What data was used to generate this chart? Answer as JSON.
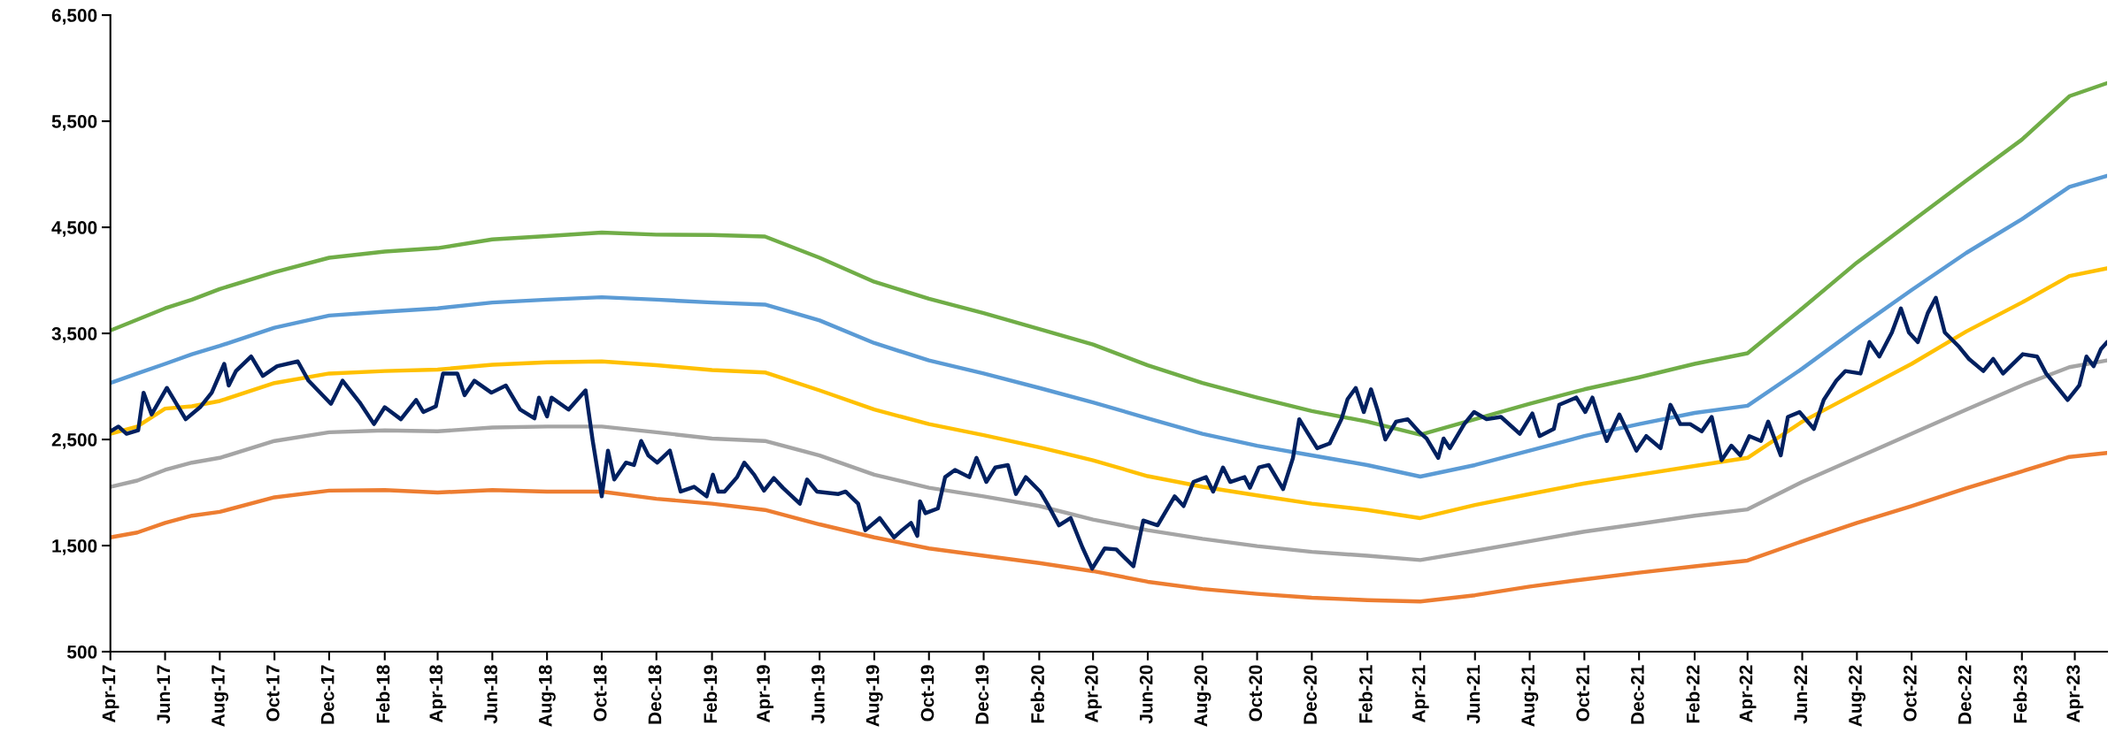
{
  "chart_data": {
    "type": "line",
    "ylim": [
      500,
      6500
    ],
    "yticks": [
      {
        "value": 500,
        "label": "500"
      },
      {
        "value": 1500,
        "label": "1,500"
      },
      {
        "value": 2500,
        "label": "2,500"
      },
      {
        "value": 3500,
        "label": "3,500"
      },
      {
        "value": 4500,
        "label": "4,500"
      },
      {
        "value": 5500,
        "label": "5,500"
      },
      {
        "value": 6500,
        "label": "6,500"
      }
    ],
    "xlim": [
      "2017-04-01",
      "2023-05-07"
    ],
    "xticks": [
      {
        "value": "2017-04-01",
        "label": "Apr-17"
      },
      {
        "value": "2017-06-01",
        "label": "Jun-17"
      },
      {
        "value": "2017-08-01",
        "label": "Aug-17"
      },
      {
        "value": "2017-10-01",
        "label": "Oct-17"
      },
      {
        "value": "2017-12-01",
        "label": "Dec-17"
      },
      {
        "value": "2018-02-01",
        "label": "Feb-18"
      },
      {
        "value": "2018-04-01",
        "label": "Apr-18"
      },
      {
        "value": "2018-06-01",
        "label": "Jun-18"
      },
      {
        "value": "2018-08-01",
        "label": "Aug-18"
      },
      {
        "value": "2018-10-01",
        "label": "Oct-18"
      },
      {
        "value": "2018-12-01",
        "label": "Dec-18"
      },
      {
        "value": "2019-02-01",
        "label": "Feb-19"
      },
      {
        "value": "2019-04-01",
        "label": "Apr-19"
      },
      {
        "value": "2019-06-01",
        "label": "Jun-19"
      },
      {
        "value": "2019-08-01",
        "label": "Aug-19"
      },
      {
        "value": "2019-10-01",
        "label": "Oct-19"
      },
      {
        "value": "2019-12-01",
        "label": "Dec-19"
      },
      {
        "value": "2020-02-01",
        "label": "Feb-20"
      },
      {
        "value": "2020-04-01",
        "label": "Apr-20"
      },
      {
        "value": "2020-06-01",
        "label": "Jun-20"
      },
      {
        "value": "2020-08-01",
        "label": "Aug-20"
      },
      {
        "value": "2020-10-01",
        "label": "Oct-20"
      },
      {
        "value": "2020-12-01",
        "label": "Dec-20"
      },
      {
        "value": "2021-02-01",
        "label": "Feb-21"
      },
      {
        "value": "2021-04-01",
        "label": "Apr-21"
      },
      {
        "value": "2021-06-01",
        "label": "Jun-21"
      },
      {
        "value": "2021-08-01",
        "label": "Aug-21"
      },
      {
        "value": "2021-10-01",
        "label": "Oct-21"
      },
      {
        "value": "2021-12-01",
        "label": "Dec-21"
      },
      {
        "value": "2022-02-01",
        "label": "Feb-22"
      },
      {
        "value": "2022-04-01",
        "label": "Apr-22"
      },
      {
        "value": "2022-06-01",
        "label": "Jun-22"
      },
      {
        "value": "2022-08-01",
        "label": "Aug-22"
      },
      {
        "value": "2022-10-01",
        "label": "Oct-22"
      },
      {
        "value": "2022-12-01",
        "label": "Dec-22"
      },
      {
        "value": "2023-02-01",
        "label": "Feb-23"
      },
      {
        "value": "2023-04-01",
        "label": "Apr-23"
      }
    ],
    "series": [
      {
        "color": "#70ad47",
        "x": [
          "2017-04-01",
          "2017-06-01",
          "2017-07-01",
          "2017-08-01",
          "2017-10-01",
          "2017-12-01",
          "2018-02-01",
          "2018-04-01",
          "2018-06-01",
          "2018-08-01",
          "2018-10-01",
          "2018-12-01",
          "2019-02-01",
          "2019-04-01",
          "2019-06-01",
          "2019-08-01",
          "2019-10-01",
          "2019-12-01",
          "2020-02-01",
          "2020-04-01",
          "2020-06-01",
          "2020-08-01",
          "2020-10-01",
          "2020-12-01",
          "2021-02-01",
          "2021-04-01",
          "2021-06-01",
          "2021-08-01",
          "2021-10-01",
          "2021-12-01",
          "2022-02-01",
          "2022-04-01",
          "2022-06-01",
          "2022-08-01",
          "2022-10-01",
          "2022-12-01",
          "2023-02-01",
          "2023-03-26",
          "2023-05-07"
        ],
        "values": [
          3527,
          3736,
          3818,
          3918,
          4077,
          4213,
          4272,
          4304,
          4386,
          4418,
          4450,
          4431,
          4427,
          4413,
          4213,
          3986,
          3827,
          3691,
          3541,
          3395,
          3200,
          3032,
          2895,
          2768,
          2668,
          2545,
          2691,
          2836,
          2973,
          3086,
          3213,
          3313,
          3736,
          4168,
          4554,
          4941,
          5327,
          5736,
          5859
        ]
      },
      {
        "color": "#5b9bd5",
        "x": [
          "2017-04-01",
          "2017-05-01",
          "2017-06-01",
          "2017-07-01",
          "2017-08-01",
          "2017-10-01",
          "2017-12-01",
          "2018-02-01",
          "2018-04-01",
          "2018-06-01",
          "2018-08-01",
          "2018-10-01",
          "2018-12-01",
          "2019-02-01",
          "2019-04-01",
          "2019-06-01",
          "2019-08-01",
          "2019-10-01",
          "2019-12-01",
          "2020-02-01",
          "2020-04-01",
          "2020-06-01",
          "2020-08-01",
          "2020-10-01",
          "2020-12-01",
          "2021-02-01",
          "2021-04-01",
          "2021-06-01",
          "2021-08-01",
          "2021-10-01",
          "2021-12-01",
          "2022-02-01",
          "2022-04-01",
          "2022-06-01",
          "2022-08-01",
          "2022-10-01",
          "2022-12-01",
          "2023-02-01",
          "2023-03-26",
          "2023-05-07"
        ],
        "values": [
          3032,
          3122,
          3213,
          3304,
          3382,
          3554,
          3668,
          3704,
          3736,
          3791,
          3818,
          3841,
          3818,
          3791,
          3772,
          3622,
          3409,
          3245,
          3122,
          2986,
          2850,
          2700,
          2554,
          2441,
          2350,
          2259,
          2150,
          2259,
          2395,
          2532,
          2645,
          2750,
          2818,
          3168,
          3545,
          3909,
          4259,
          4577,
          4881,
          4986
        ]
      },
      {
        "color": "#ffc000",
        "x": [
          "2017-04-01",
          "2017-05-01",
          "2017-06-01",
          "2017-07-01",
          "2017-08-01",
          "2017-10-01",
          "2017-12-01",
          "2018-02-01",
          "2018-04-01",
          "2018-06-01",
          "2018-08-01",
          "2018-10-01",
          "2018-12-01",
          "2019-02-01",
          "2019-04-01",
          "2019-06-01",
          "2019-08-01",
          "2019-10-01",
          "2019-12-01",
          "2020-02-01",
          "2020-04-01",
          "2020-06-01",
          "2020-08-01",
          "2020-10-01",
          "2020-12-01",
          "2021-02-01",
          "2021-04-01",
          "2021-06-01",
          "2021-08-01",
          "2021-10-01",
          "2021-12-01",
          "2022-02-01",
          "2022-04-01",
          "2022-06-01",
          "2022-08-01",
          "2022-10-01",
          "2022-12-01",
          "2023-02-01",
          "2023-03-26",
          "2023-05-07"
        ],
        "values": [
          2554,
          2622,
          2791,
          2813,
          2863,
          3032,
          3122,
          3145,
          3159,
          3204,
          3227,
          3236,
          3200,
          3154,
          3132,
          2963,
          2782,
          2645,
          2541,
          2427,
          2304,
          2154,
          2054,
          1973,
          1895,
          1836,
          1759,
          1882,
          1986,
          2086,
          2168,
          2250,
          2327,
          2668,
          2941,
          3213,
          3518,
          3791,
          4041,
          4113
        ]
      },
      {
        "color": "#a5a5a5",
        "x": [
          "2017-04-01",
          "2017-05-01",
          "2017-06-01",
          "2017-07-01",
          "2017-08-01",
          "2017-10-01",
          "2017-12-01",
          "2018-02-01",
          "2018-04-01",
          "2018-06-01",
          "2018-08-01",
          "2018-10-01",
          "2018-12-01",
          "2019-02-01",
          "2019-04-01",
          "2019-06-01",
          "2019-08-01",
          "2019-10-01",
          "2019-12-01",
          "2020-02-01",
          "2020-04-01",
          "2020-06-01",
          "2020-08-01",
          "2020-10-01",
          "2020-12-01",
          "2021-02-01",
          "2021-04-01",
          "2021-06-01",
          "2021-08-01",
          "2021-10-01",
          "2021-12-01",
          "2022-02-01",
          "2022-04-01",
          "2022-06-01",
          "2022-08-01",
          "2022-10-01",
          "2022-12-01",
          "2023-02-01",
          "2023-03-26",
          "2023-05-07"
        ],
        "values": [
          2054,
          2113,
          2213,
          2282,
          2327,
          2486,
          2568,
          2586,
          2577,
          2613,
          2622,
          2622,
          2568,
          2509,
          2486,
          2350,
          2168,
          2045,
          1964,
          1873,
          1745,
          1645,
          1564,
          1495,
          1441,
          1404,
          1364,
          1450,
          1541,
          1632,
          1704,
          1782,
          1841,
          2100,
          2327,
          2554,
          2782,
          3009,
          3182,
          3245
        ]
      },
      {
        "color": "#ed7d31",
        "x": [
          "2017-04-01",
          "2017-05-01",
          "2017-06-01",
          "2017-07-01",
          "2017-08-01",
          "2017-10-01",
          "2017-12-01",
          "2018-02-01",
          "2018-04-01",
          "2018-06-01",
          "2018-08-01",
          "2018-10-01",
          "2018-12-01",
          "2019-02-01",
          "2019-04-01",
          "2019-06-01",
          "2019-08-01",
          "2019-10-01",
          "2019-12-01",
          "2020-02-01",
          "2020-04-01",
          "2020-06-01",
          "2020-08-01",
          "2020-10-01",
          "2020-12-01",
          "2021-02-01",
          "2021-04-01",
          "2021-06-01",
          "2021-08-01",
          "2021-10-01",
          "2021-12-01",
          "2022-02-01",
          "2022-04-01",
          "2022-06-01",
          "2022-08-01",
          "2022-10-01",
          "2022-12-01",
          "2023-02-01",
          "2023-03-26",
          "2023-05-07"
        ],
        "values": [
          1577,
          1623,
          1714,
          1782,
          1818,
          1955,
          2018,
          2023,
          2000,
          2023,
          2009,
          2009,
          1941,
          1895,
          1836,
          1700,
          1577,
          1473,
          1404,
          1336,
          1259,
          1159,
          1091,
          1045,
          1009,
          986,
          973,
          1032,
          1114,
          1182,
          1245,
          1304,
          1359,
          1541,
          1714,
          1873,
          2041,
          2200,
          2336,
          2373
        ]
      },
      {
        "color": "#002060",
        "x": [
          "2017-04-01",
          "2017-04-10",
          "2017-04-19",
          "2017-05-02",
          "2017-05-08",
          "2017-05-17",
          "2017-06-03",
          "2017-06-24",
          "2017-07-10",
          "2017-07-23",
          "2017-08-06",
          "2017-08-11",
          "2017-08-19",
          "2017-09-05",
          "2017-09-18",
          "2017-10-04",
          "2017-10-27",
          "2017-11-08",
          "2017-12-03",
          "2017-12-16",
          "2018-01-04",
          "2018-01-20",
          "2018-02-01",
          "2018-02-19",
          "2018-03-08",
          "2018-03-16",
          "2018-03-30",
          "2018-04-07",
          "2018-04-23",
          "2018-05-01",
          "2018-05-12",
          "2018-05-31",
          "2018-06-16",
          "2018-07-02",
          "2018-07-18",
          "2018-07-23",
          "2018-08-01",
          "2018-08-06",
          "2018-08-25",
          "2018-09-13",
          "2018-09-21",
          "2018-10-01",
          "2018-10-08",
          "2018-10-15",
          "2018-10-28",
          "2018-11-06",
          "2018-11-14",
          "2018-11-22",
          "2018-12-02",
          "2018-12-16",
          "2018-12-28",
          "2019-01-12",
          "2019-01-26",
          "2019-02-02",
          "2019-02-08",
          "2019-02-15",
          "2019-03-01",
          "2019-03-09",
          "2019-03-20",
          "2019-03-31",
          "2019-04-11",
          "2019-04-21",
          "2019-05-10",
          "2019-05-18",
          "2019-05-29",
          "2019-06-22",
          "2019-06-30",
          "2019-07-14",
          "2019-07-22",
          "2019-08-07",
          "2019-08-23",
          "2019-09-01",
          "2019-09-11",
          "2019-09-18",
          "2019-09-21",
          "2019-09-27",
          "2019-10-11",
          "2019-10-19",
          "2019-10-30",
          "2019-11-15",
          "2019-11-23",
          "2019-12-04",
          "2019-12-14",
          "2019-12-28",
          "2020-01-06",
          "2020-01-17",
          "2020-02-02",
          "2020-02-10",
          "2020-02-23",
          "2020-03-07",
          "2020-03-20",
          "2020-03-31",
          "2020-04-14",
          "2020-04-27",
          "2020-05-16",
          "2020-05-27",
          "2020-06-12",
          "2020-07-01",
          "2020-07-11",
          "2020-07-22",
          "2020-08-05",
          "2020-08-13",
          "2020-08-24",
          "2020-09-01",
          "2020-09-17",
          "2020-09-23",
          "2020-10-03",
          "2020-10-14",
          "2020-10-30",
          "2020-11-10",
          "2020-11-17",
          "2020-11-27",
          "2020-12-07",
          "2020-12-21",
          "2021-01-03",
          "2021-01-10",
          "2021-01-19",
          "2021-01-28",
          "2021-02-05",
          "2021-02-13",
          "2021-02-21",
          "2021-03-05",
          "2021-03-18",
          "2021-03-30",
          "2021-04-08",
          "2021-04-21",
          "2021-04-27",
          "2021-05-04",
          "2021-05-20",
          "2021-05-31",
          "2021-06-14",
          "2021-06-30",
          "2021-07-21",
          "2021-08-04",
          "2021-08-12",
          "2021-08-28",
          "2021-09-03",
          "2021-09-22",
          "2021-10-02",
          "2021-10-10",
          "2021-10-21",
          "2021-10-26",
          "2021-11-09",
          "2021-11-28",
          "2021-12-09",
          "2021-12-25",
          "2022-01-05",
          "2022-01-16",
          "2022-01-27",
          "2022-02-09",
          "2022-02-20",
          "2022-03-03",
          "2022-03-14",
          "2022-03-24",
          "2022-04-03",
          "2022-04-16",
          "2022-04-24",
          "2022-05-08",
          "2022-05-16",
          "2022-05-29",
          "2022-06-14",
          "2022-06-25",
          "2022-07-09",
          "2022-07-19",
          "2022-08-05",
          "2022-08-15",
          "2022-08-26",
          "2022-09-09",
          "2022-09-19",
          "2022-09-28",
          "2022-10-08",
          "2022-10-19",
          "2022-10-28",
          "2022-11-07",
          "2022-11-23",
          "2022-12-04",
          "2022-12-20",
          "2022-12-31",
          "2023-01-11",
          "2023-02-02",
          "2023-02-18",
          "2023-02-28",
          "2023-03-11",
          "2023-03-24",
          "2023-04-06",
          "2023-04-14",
          "2023-04-22",
          "2023-04-30",
          "2023-05-07"
        ],
        "values": [
          2577,
          2622,
          2554,
          2586,
          2941,
          2736,
          2986,
          2691,
          2804,
          2941,
          3213,
          3009,
          3145,
          3282,
          3100,
          3191,
          3236,
          3054,
          2836,
          3054,
          2850,
          2645,
          2804,
          2691,
          2873,
          2759,
          2813,
          3122,
          3122,
          2918,
          3054,
          2941,
          3009,
          2782,
          2700,
          2895,
          2718,
          2895,
          2782,
          2963,
          2486,
          1964,
          2395,
          2123,
          2282,
          2259,
          2486,
          2350,
          2282,
          2395,
          2009,
          2054,
          1964,
          2168,
          2009,
          2009,
          2145,
          2282,
          2168,
          2018,
          2136,
          2045,
          1895,
          2123,
          2009,
          1986,
          2009,
          1895,
          1645,
          1759,
          1577,
          1645,
          1714,
          1591,
          1918,
          1805,
          1850,
          2145,
          2213,
          2145,
          2327,
          2100,
          2236,
          2259,
          1986,
          2145,
          2009,
          1895,
          1691,
          1759,
          1486,
          1282,
          1473,
          1464,
          1305,
          1736,
          1691,
          1964,
          1873,
          2100,
          2145,
          2009,
          2236,
          2100,
          2145,
          2045,
          2236,
          2259,
          2032,
          2327,
          2691,
          2554,
          2418,
          2463,
          2691,
          2882,
          2986,
          2759,
          2973,
          2759,
          2500,
          2668,
          2691,
          2577,
          2509,
          2327,
          2509,
          2418,
          2645,
          2759,
          2691,
          2713,
          2554,
          2745,
          2532,
          2600,
          2827,
          2895,
          2759,
          2895,
          2600,
          2486,
          2736,
          2395,
          2532,
          2418,
          2827,
          2645,
          2645,
          2577,
          2713,
          2304,
          2441,
          2350,
          2532,
          2486,
          2668,
          2350,
          2713,
          2759,
          2600,
          2873,
          3054,
          3145,
          3122,
          3418,
          3282,
          3509,
          3736,
          3509,
          3418,
          3691,
          3836,
          3509,
          3373,
          3259,
          3145,
          3259,
          3122,
          3304,
          3282,
          3122,
          3009,
          2873,
          3009,
          3282,
          3191,
          3350,
          3418
        ]
      }
    ],
    "grid": false,
    "line_style": "solid",
    "marker": "none"
  }
}
